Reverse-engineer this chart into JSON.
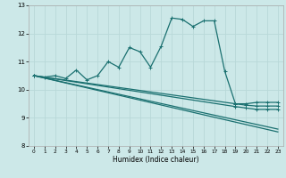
{
  "xlabel": "Humidex (Indice chaleur)",
  "bg_color": "#cce8e8",
  "grid_color": "#b8d8d8",
  "line_color": "#1a7070",
  "xlim": [
    -0.5,
    23.5
  ],
  "ylim": [
    8,
    13
  ],
  "yticks": [
    8,
    9,
    10,
    11,
    12,
    13
  ],
  "xticks": [
    0,
    1,
    2,
    3,
    4,
    5,
    6,
    7,
    8,
    9,
    10,
    11,
    12,
    13,
    14,
    15,
    16,
    17,
    18,
    19,
    20,
    21,
    22,
    23
  ],
  "line1_x": [
    0,
    1,
    2,
    3,
    4,
    5,
    6,
    7,
    8,
    9,
    10,
    11,
    12,
    13,
    14,
    15,
    16,
    17,
    18,
    19,
    20,
    21,
    22,
    23
  ],
  "line1_y": [
    10.5,
    10.45,
    10.5,
    10.4,
    10.7,
    10.35,
    10.5,
    11.0,
    10.8,
    11.5,
    11.35,
    10.8,
    11.55,
    12.55,
    12.5,
    12.25,
    12.45,
    12.45,
    10.65,
    9.5,
    9.5,
    9.55,
    9.55,
    9.55
  ],
  "line2_x": [
    0,
    23
  ],
  "line2_y": [
    10.5,
    8.5
  ],
  "line3_x": [
    0,
    23
  ],
  "line3_y": [
    10.5,
    8.6
  ],
  "line4_x": [
    0,
    19,
    20,
    21,
    22,
    23
  ],
  "line4_y": [
    10.5,
    9.4,
    9.35,
    9.3,
    9.3,
    9.3
  ],
  "line5_x": [
    0,
    19,
    20,
    21,
    22,
    23
  ],
  "line5_y": [
    10.5,
    9.5,
    9.45,
    9.42,
    9.42,
    9.42
  ]
}
